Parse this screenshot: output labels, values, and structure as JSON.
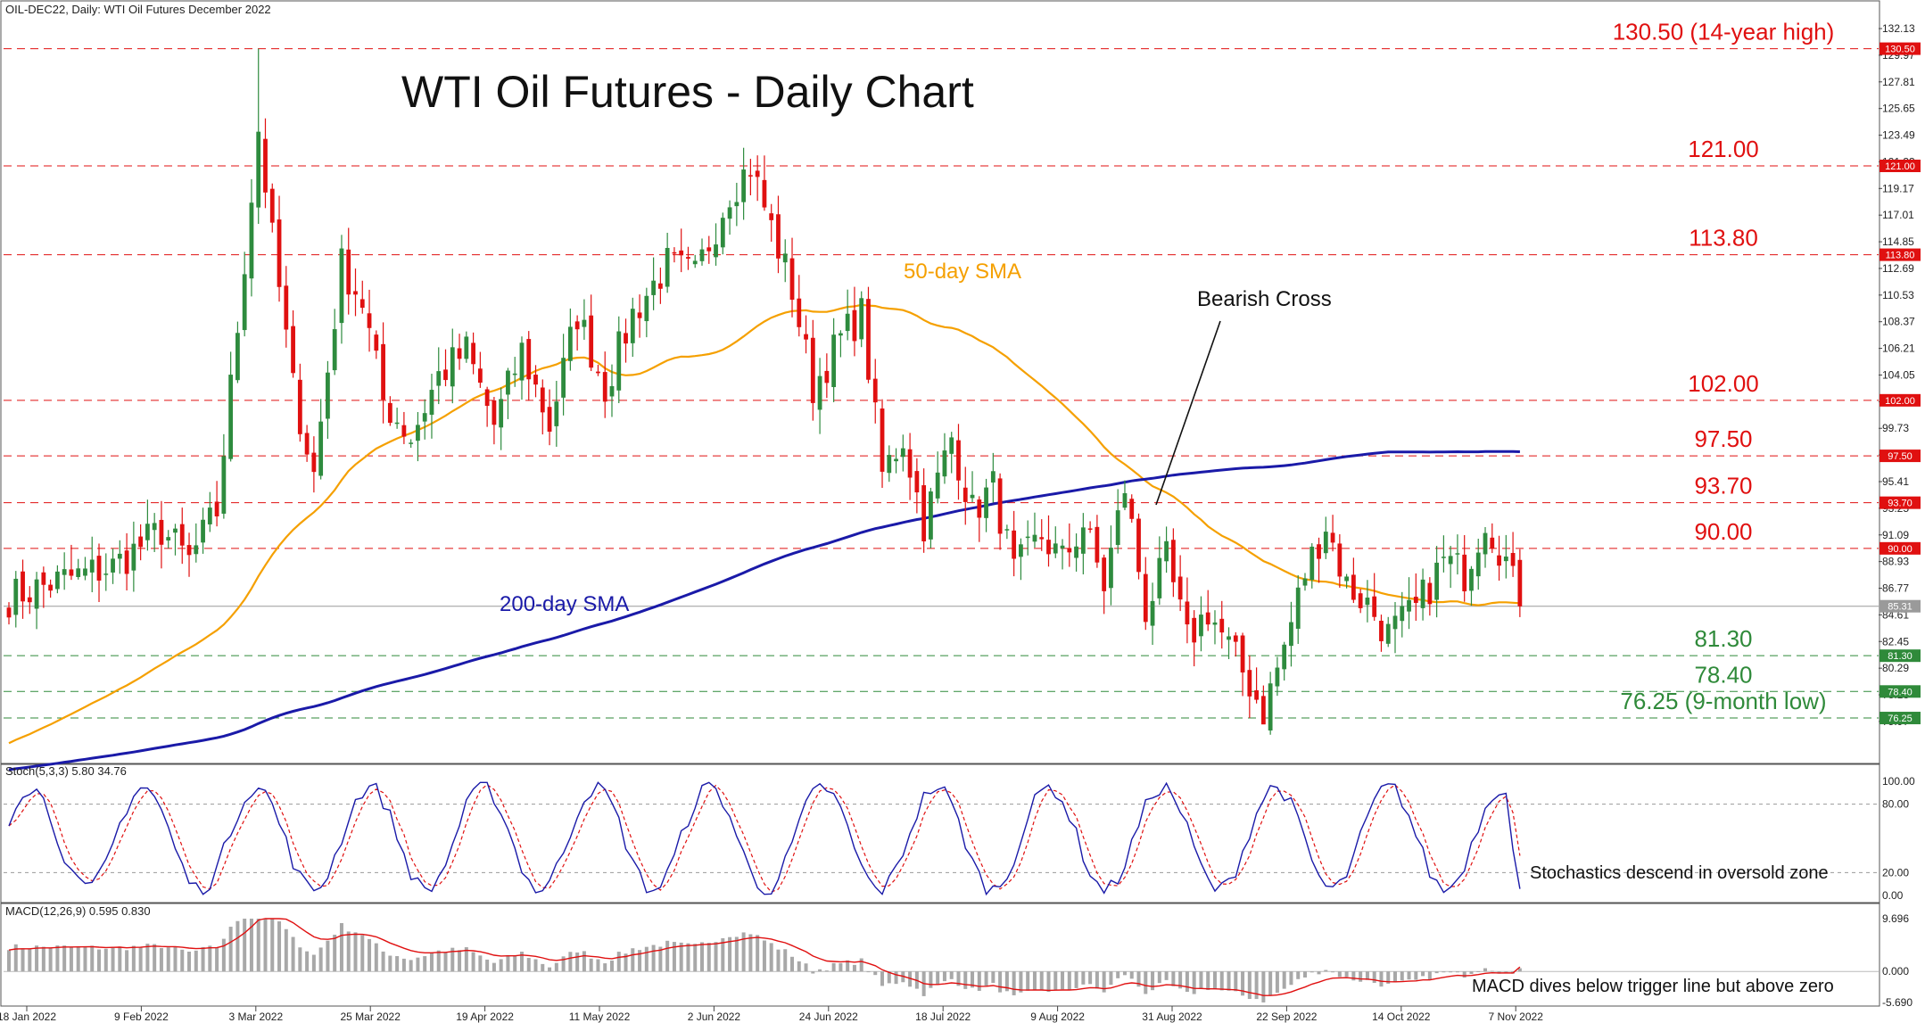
{
  "header": {
    "symbol_line": "OIL-DEC22, Daily:  WTI Oil Futures December 2022",
    "title": "WTI Oil Futures - Daily Chart"
  },
  "colors": {
    "bull": "#2e8b3e",
    "bear": "#e01010",
    "sma50": "#f5a000",
    "sma200": "#1a1aa8",
    "resistance": "#e01010",
    "support": "#2f8a3a"
  },
  "chart_data": [
    {
      "type": "candlestick",
      "title": "WTI Oil Futures - Daily Chart",
      "ylim": [
        73.0,
        133.0
      ],
      "current_price": "85.31",
      "y_ticks": [
        "132.13",
        "129.97",
        "127.81",
        "125.65",
        "123.49",
        "121.33",
        "119.17",
        "117.01",
        "114.85",
        "112.69",
        "110.53",
        "108.37",
        "106.21",
        "104.05",
        "101.89",
        "99.73",
        "97.57",
        "95.41",
        "93.25",
        "91.09",
        "88.93",
        "86.77",
        "84.61",
        "82.45",
        "80.29",
        "78.13",
        "75.97"
      ],
      "x_ticks": [
        "18 Jan 2022",
        "9 Feb 2022",
        "3 Mar 2022",
        "25 Mar 2022",
        "19 Apr 2022",
        "11 May 2022",
        "2 Jun 2022",
        "24 Jun 2022",
        "18 Jul 2022",
        "9 Aug 2022",
        "31 Aug 2022",
        "22 Sep 2022",
        "14 Oct 2022",
        "7 Nov 2022"
      ],
      "levels": [
        {
          "value": 130.5,
          "label": "130.50 (14-year high)",
          "tag": "130.50",
          "kind": "resistance"
        },
        {
          "value": 121.0,
          "label": "121.00",
          "tag": "121.00",
          "kind": "resistance"
        },
        {
          "value": 113.8,
          "label": "113.80",
          "tag": "113.80",
          "kind": "resistance"
        },
        {
          "value": 102.0,
          "label": "102.00",
          "tag": "102.00",
          "kind": "resistance"
        },
        {
          "value": 97.5,
          "label": "97.50",
          "tag": "97.50",
          "kind": "resistance"
        },
        {
          "value": 93.7,
          "label": "93.70",
          "tag": "93.70",
          "kind": "resistance"
        },
        {
          "value": 90.0,
          "label": "90.00",
          "tag": "90.00",
          "kind": "resistance"
        },
        {
          "value": 81.3,
          "label": "81.30",
          "tag": "81.30",
          "kind": "support"
        },
        {
          "value": 78.4,
          "label": "78.40",
          "tag": "78.40",
          "kind": "support"
        },
        {
          "value": 76.25,
          "label": "76.25 (9-month low)",
          "tag": "76.25",
          "kind": "support"
        }
      ],
      "anchor_closes": [
        [
          0,
          86.0
        ],
        [
          8,
          87.5
        ],
        [
          15,
          88.5
        ],
        [
          22,
          91.5
        ],
        [
          26,
          89.0
        ],
        [
          30,
          93.0
        ],
        [
          33,
          108.0
        ],
        [
          36,
          124.0
        ],
        [
          38,
          115.0
        ],
        [
          41,
          103.0
        ],
        [
          44,
          96.0
        ],
        [
          48,
          113.0
        ],
        [
          51,
          110.0
        ],
        [
          54,
          102.0
        ],
        [
          58,
          99.0
        ],
        [
          62,
          104.0
        ],
        [
          66,
          106.0
        ],
        [
          70,
          100.0
        ],
        [
          74,
          106.0
        ],
        [
          78,
          100.0
        ],
        [
          82,
          109.0
        ],
        [
          86,
          103.0
        ],
        [
          90,
          109.0
        ],
        [
          95,
          113.0
        ],
        [
          99,
          112.0
        ],
        [
          104,
          119.0
        ],
        [
          107,
          121.0
        ],
        [
          110,
          116.0
        ],
        [
          113,
          111.0
        ],
        [
          116,
          103.0
        ],
        [
          120,
          107.0
        ],
        [
          123,
          109.0
        ],
        [
          126,
          96.0
        ],
        [
          129,
          99.0
        ],
        [
          132,
          92.0
        ],
        [
          136,
          99.0
        ],
        [
          139,
          93.0
        ],
        [
          142,
          95.0
        ],
        [
          145,
          88.0
        ],
        [
          149,
          91.0
        ],
        [
          152,
          89.0
        ],
        [
          155,
          92.0
        ],
        [
          158,
          87.0
        ],
        [
          161,
          95.0
        ],
        [
          164,
          85.0
        ],
        [
          167,
          89.0
        ],
        [
          170,
          82.5
        ],
        [
          173,
          85.0
        ],
        [
          176,
          82.0
        ],
        [
          179,
          79.0
        ],
        [
          181,
          76.8
        ],
        [
          184,
          82.0
        ],
        [
          187,
          88.0
        ],
        [
          190,
          92.0
        ],
        [
          193,
          87.0
        ],
        [
          196,
          85.5
        ],
        [
          199,
          83.0
        ],
        [
          203,
          85.0
        ],
        [
          207,
          89.0
        ],
        [
          210,
          88.0
        ],
        [
          213,
          92.5
        ],
        [
          216,
          89.0
        ],
        [
          218,
          85.3
        ]
      ],
      "annotations": [
        "50-day SMA",
        "200-day SMA",
        "Bearish Cross"
      ],
      "series": [
        {
          "name": "50-day SMA",
          "role": "moving average"
        },
        {
          "name": "200-day SMA",
          "role": "moving average"
        }
      ]
    },
    {
      "type": "line",
      "title": "Stoch(5,3,3) 5.80 34.76",
      "ylim": [
        0.0,
        100.0
      ],
      "y_ticks": [
        "100.00",
        "80.00",
        "20.00",
        "0.00"
      ],
      "last_values": {
        "main": 5.8,
        "signal": 34.76
      },
      "annotation": "Stochastics descend in oversold zone"
    },
    {
      "type": "bar",
      "title": "MACD(12,26,9) 0.595 0.830",
      "ylim": [
        -5.69,
        9.696
      ],
      "y_ticks": [
        "9.696",
        "0.000",
        "-5.690"
      ],
      "last_values": {
        "macd": 0.595,
        "signal": 0.83
      },
      "annotation": "MACD dives below trigger line but above zero"
    }
  ]
}
